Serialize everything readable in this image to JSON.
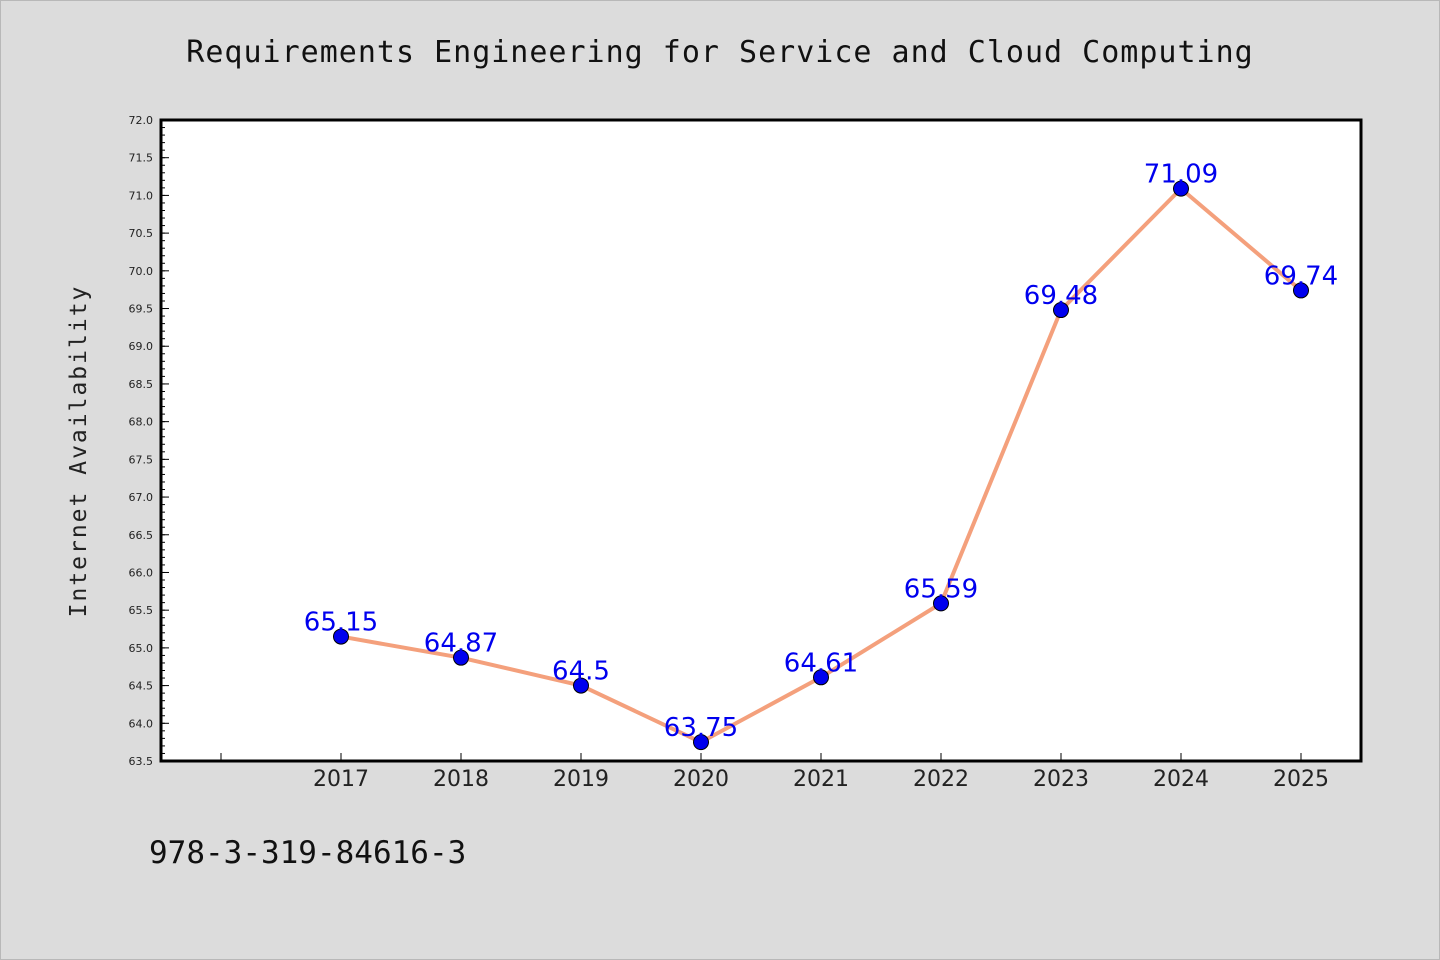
{
  "chart_data": {
    "type": "line",
    "title": "Requirements Engineering for Service and Cloud Computing",
    "xlabel": "",
    "ylabel": "Internet Availability",
    "categories": [
      "2017",
      "2018",
      "2019",
      "2020",
      "2021",
      "2022",
      "2023",
      "2024",
      "2025"
    ],
    "series": [
      {
        "values": [
          65.15,
          64.87,
          64.5,
          63.75,
          64.61,
          65.59,
          69.48,
          71.09,
          69.74
        ],
        "data_labels": [
          "65.15",
          "64.87",
          "64.5",
          "63.75",
          "64.61",
          "65.59",
          "69.48",
          "71.09",
          "69.74"
        ],
        "line_color": "#f4a07c",
        "marker_color": "#0000ee"
      }
    ],
    "ylim": [
      63.5,
      72.0
    ],
    "ytick_labels": [
      "63.5",
      "64.0",
      "64.5",
      "65.0",
      "65.5",
      "66.0",
      "66.5",
      "67.0",
      "67.5",
      "68.0",
      "68.5",
      "69.0",
      "69.5",
      "70.0",
      "70.5",
      "71.0",
      "71.5",
      "72.0"
    ],
    "grid": false,
    "legend": "none"
  },
  "footer_text": "978-3-319-84616-3"
}
